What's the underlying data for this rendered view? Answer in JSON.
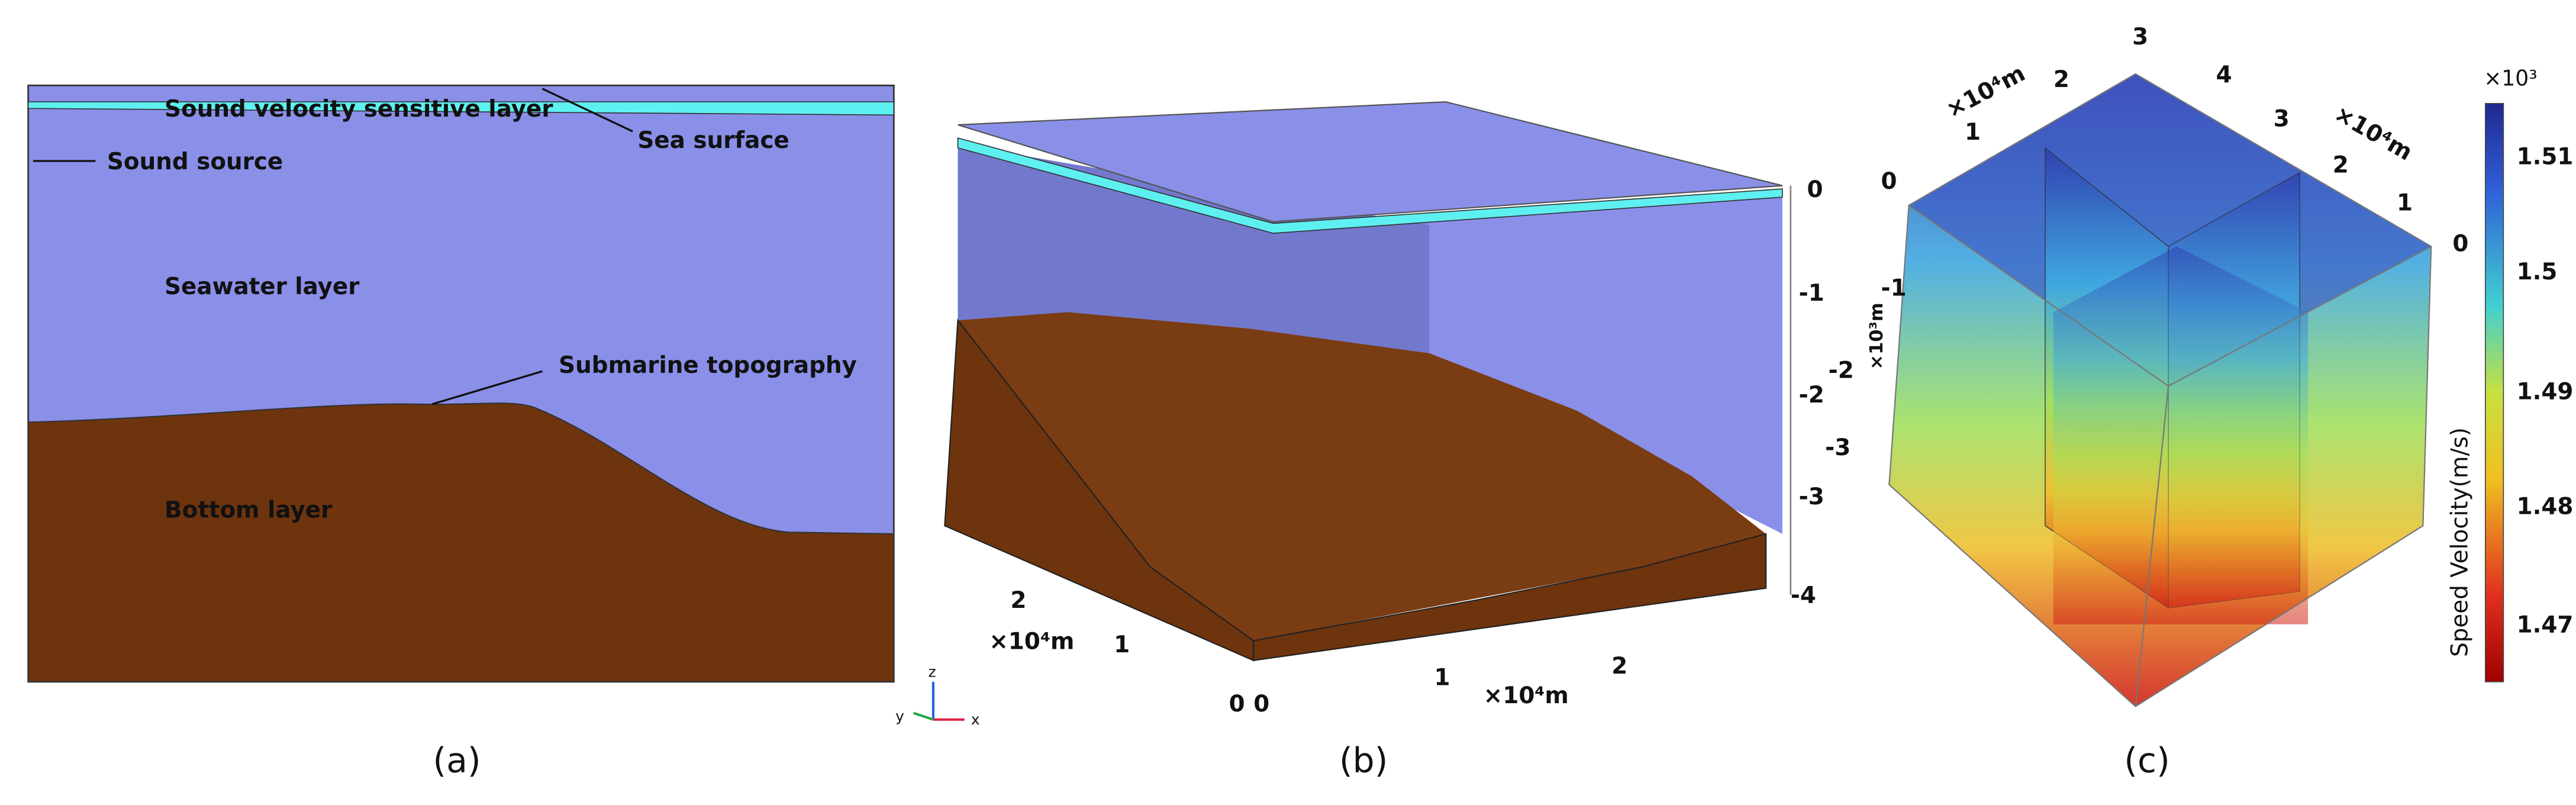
{
  "panel_a": {
    "labels": {
      "sensitive_layer": "Sound velocity sensitive layer",
      "sea_surface": "Sea surface",
      "sound_source": "Sound source",
      "seawater": "Seawater layer",
      "topography": "Submarine topography",
      "bottom": "Bottom layer"
    },
    "triad": [
      "z",
      "y",
      "x"
    ],
    "caption": "(a)"
  },
  "panel_b": {
    "z_ticks": [
      "0",
      "-1",
      "-2",
      "-3",
      "-4"
    ],
    "y_ticks": [
      "2",
      "1",
      "0"
    ],
    "x_ticks": [
      "0",
      "1",
      "2"
    ],
    "y_unit": "×10⁴m",
    "x_unit": "×10⁴m",
    "caption": "(b)"
  },
  "panel_c": {
    "left_ticks": [
      "0",
      "1",
      "2",
      "3"
    ],
    "left_unit": "×10⁴m",
    "right_ticks": [
      "4",
      "3",
      "2",
      "1",
      "0"
    ],
    "right_unit": "×10⁴m",
    "depth_ticks": [
      "-1",
      "-2",
      "-3"
    ],
    "depth_unit": "×10³m",
    "colorbar": {
      "title": "Speed Velocity(m/s)",
      "multiplier": "×10³",
      "ticks": [
        "1.51",
        "1.5",
        "1.49",
        "1.48",
        "1.47"
      ]
    },
    "caption": "(c)"
  }
}
